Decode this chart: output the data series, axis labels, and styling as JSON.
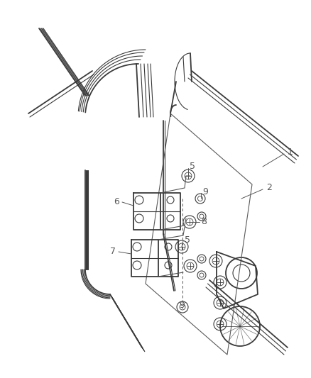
{
  "bg_color": "#ffffff",
  "line_color": "#3a3a3a",
  "label_color": "#555555",
  "figsize": [
    4.38,
    5.33
  ],
  "dpi": 100,
  "xlim": [
    0,
    438
  ],
  "ylim": [
    0,
    533
  ]
}
